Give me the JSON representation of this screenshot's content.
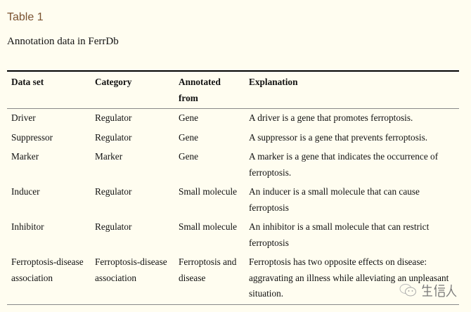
{
  "label": "Table 1",
  "caption": "Annotation data in FerrDb",
  "columns": [
    "Data set",
    "Category",
    "Annotated from",
    "Explanation"
  ],
  "rows": [
    [
      "Driver",
      "Regulator",
      "Gene",
      "A driver is a gene that promotes ferroptosis."
    ],
    [
      "Suppressor",
      "Regulator",
      "Gene",
      "A suppressor is a gene that prevents ferroptosis."
    ],
    [
      "Marker",
      "Marker",
      "Gene",
      "A marker is a gene that indicates the occurrence of ferroptosis."
    ],
    [
      "Inducer",
      "Regulator",
      "Small molecule",
      "An inducer is a small molecule that can cause ferroptosis"
    ],
    [
      "Inhibitor",
      "Regulator",
      "Small molecule",
      "An inhibitor is a small molecule that can restrict ferroptosis"
    ],
    [
      "Ferroptosis-disease association",
      "Ferroptosis-disease association",
      "Ferroptosis and disease",
      "Ferroptosis has two opposite effects on disease: aggravating an illness while alleviating an unpleasant situation."
    ]
  ],
  "watermark": {
    "text": "生信人",
    "icon": "wechat-icon"
  }
}
